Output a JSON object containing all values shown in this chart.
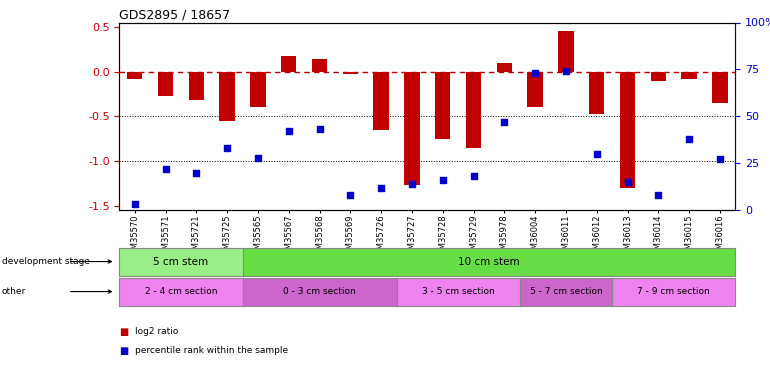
{
  "title": "GDS2895 / 18657",
  "samples": [
    "GSM35570",
    "GSM35571",
    "GSM35721",
    "GSM35725",
    "GSM35565",
    "GSM35567",
    "GSM35568",
    "GSM35569",
    "GSM35726",
    "GSM35727",
    "GSM35728",
    "GSM35729",
    "GSM35978",
    "GSM36004",
    "GSM36011",
    "GSM36012",
    "GSM36013",
    "GSM36014",
    "GSM36015",
    "GSM36016"
  ],
  "log2_ratio": [
    -0.08,
    -0.27,
    -0.32,
    -0.55,
    -0.4,
    0.17,
    0.14,
    -0.03,
    -0.65,
    -1.27,
    -0.75,
    -0.85,
    0.1,
    -0.4,
    0.46,
    -0.48,
    -1.3,
    -0.1,
    -0.08,
    -0.35
  ],
  "percentile": [
    3,
    22,
    20,
    33,
    28,
    42,
    43,
    8,
    12,
    14,
    16,
    18,
    47,
    73,
    74,
    30,
    15,
    8,
    38,
    27
  ],
  "bar_color": "#c00000",
  "dot_color": "#0000cc",
  "dashed_line_color": "#c00000",
  "ylim_left": [
    -1.55,
    0.55
  ],
  "ylim_right": [
    0,
    100
  ],
  "yticks_left": [
    -1.5,
    -1.0,
    -0.5,
    0.0,
    0.5
  ],
  "yticks_right": [
    0,
    25,
    50,
    75,
    100
  ],
  "dev_stage_groups": [
    {
      "label": "5 cm stem",
      "start": 0,
      "end": 3,
      "color": "#99ee88"
    },
    {
      "label": "10 cm stem",
      "start": 4,
      "end": 19,
      "color": "#66dd44"
    }
  ],
  "other_groups": [
    {
      "label": "2 - 4 cm section",
      "start": 0,
      "end": 3,
      "color": "#ee82ee"
    },
    {
      "label": "0 - 3 cm section",
      "start": 4,
      "end": 8,
      "color": "#cc66cc"
    },
    {
      "label": "3 - 5 cm section",
      "start": 9,
      "end": 12,
      "color": "#ee82ee"
    },
    {
      "label": "5 - 7 cm section",
      "start": 13,
      "end": 15,
      "color": "#cc66cc"
    },
    {
      "label": "7 - 9 cm section",
      "start": 16,
      "end": 19,
      "color": "#ee82ee"
    }
  ],
  "dev_stage_label": "development stage",
  "other_label": "other",
  "legend_log2": "log2 ratio",
  "legend_pct": "percentile rank within the sample"
}
